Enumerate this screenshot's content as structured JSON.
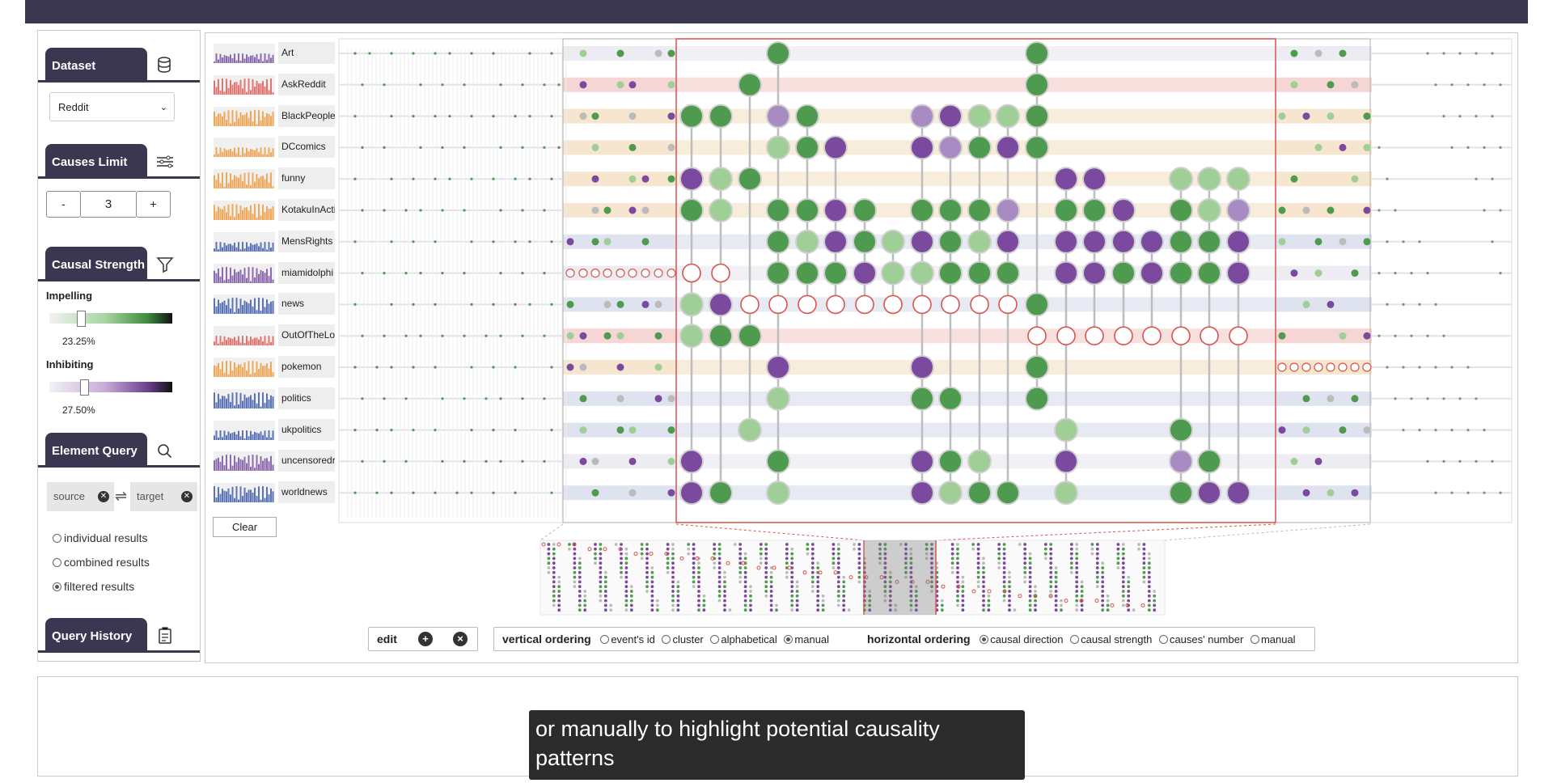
{
  "left_panel": {
    "dataset": {
      "title": "Dataset",
      "icon": "database-icon",
      "selected": "Reddit"
    },
    "causes_limit": {
      "title": "Causes Limit",
      "icon": "sliders-icon",
      "minus": "-",
      "value": "3",
      "plus": "+"
    },
    "causal_strength": {
      "title": "Causal Strength",
      "icon": "filter-icon",
      "impelling_label": "Impelling",
      "impelling_value": "23.25%",
      "impelling_level": 0.2325,
      "inhibiting_label": "Inhibiting",
      "inhibiting_value": "27.50%",
      "inhibiting_level": 0.275
    },
    "element_query": {
      "title": "Element Query",
      "icon": "search-icon",
      "source_placeholder": "source",
      "target_placeholder": "target",
      "swap_icon": "⇌",
      "options": [
        "individual results",
        "combined results",
        "filtered results"
      ],
      "selected_option": "filtered results"
    },
    "query_history": {
      "title": "Query History",
      "icon": "clipboard-icon"
    }
  },
  "rows": [
    "Art",
    "AskReddit",
    "BlackPeople",
    "DCcomics",
    "funny",
    "KotakuInActi",
    "MensRights",
    "miamidolphi",
    "news",
    "OutOfTheLo",
    "pokemon",
    "politics",
    "ukpolitics",
    "uncensoredr",
    "worldnews"
  ],
  "row_colors": [
    "#8c6bb1",
    "#e3746f",
    "#f0a85a",
    "#f0a85a",
    "#f0a85a",
    "#f0a85a",
    "#5b74b8",
    "#8c6bb1",
    "#5b74b8",
    "#e3746f",
    "#f0a85a",
    "#5b74b8",
    "#5b74b8",
    "#8c6bb1",
    "#5b74b8"
  ],
  "clear_label": "Clear",
  "toolbar": {
    "edit_label": "edit",
    "vertical_label": "vertical ordering",
    "vertical_options": [
      "event's id",
      "cluster",
      "alphabetical",
      "manual"
    ],
    "vertical_selected": "manual",
    "horizontal_label": "horizontal ordering",
    "horizontal_options": [
      "causal direction",
      "causal strength",
      "causes' number",
      "manual"
    ],
    "horizontal_selected": "causal direction"
  },
  "caption": "or manually to highlight potential causality patterns",
  "colors": {
    "impelling": "#4e9a4e",
    "inhibiting": "#7b4a9e",
    "highlight": "#d9534f",
    "header": "#3b3750"
  }
}
